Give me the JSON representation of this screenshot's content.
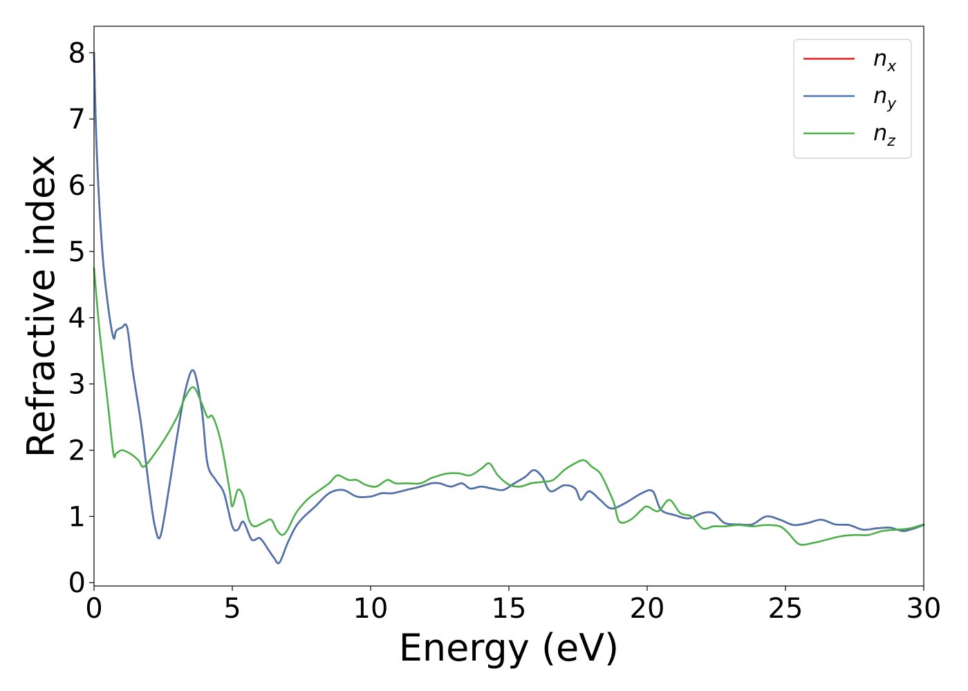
{
  "chart_data": {
    "type": "line",
    "xlabel": "Energy (eV)",
    "ylabel": "Refractive index",
    "xlim": [
      0,
      30
    ],
    "ylim": [
      -0.05,
      8.4
    ],
    "xticks": [
      0,
      5,
      10,
      15,
      20,
      25,
      30
    ],
    "yticks": [
      0,
      1,
      2,
      3,
      4,
      5,
      6,
      7,
      8
    ],
    "grid": false,
    "legend_position": "top-right",
    "series": [
      {
        "name": "n",
        "subscript": "x",
        "color": "#e41a1c",
        "x": [
          0,
          0.1,
          0.3,
          0.5,
          0.7,
          0.8,
          1.0,
          1.2,
          1.4,
          1.7,
          2.0,
          2.2,
          2.4,
          2.7,
          3.0,
          3.3,
          3.6,
          3.9,
          4.1,
          4.4,
          4.7,
          5.0,
          5.2,
          5.4,
          5.7,
          6.0,
          6.3,
          6.5,
          6.7,
          7.0,
          7.3,
          7.6,
          8.0,
          8.5,
          9.0,
          9.5,
          10.0,
          10.4,
          10.8,
          11.3,
          11.8,
          12.2,
          12.5,
          12.9,
          13.3,
          13.6,
          14.0,
          14.4,
          14.8,
          15.2,
          15.6,
          15.9,
          16.2,
          16.5,
          17.0,
          17.4,
          17.6,
          17.9,
          18.3,
          18.7,
          19.2,
          19.8,
          20.2,
          20.5,
          21.0,
          21.5,
          22.0,
          22.4,
          22.8,
          23.3,
          23.8,
          24.3,
          24.8,
          25.3,
          25.8,
          26.3,
          26.8,
          27.3,
          27.8,
          28.3,
          28.8,
          29.3,
          30.0
        ],
        "values": [
          8.0,
          6.5,
          5.0,
          4.2,
          3.7,
          3.8,
          3.85,
          3.85,
          3.2,
          2.4,
          1.4,
          0.85,
          0.7,
          1.4,
          2.2,
          2.9,
          3.2,
          2.6,
          1.8,
          1.55,
          1.35,
          0.85,
          0.8,
          0.92,
          0.65,
          0.67,
          0.5,
          0.38,
          0.3,
          0.6,
          0.85,
          1.0,
          1.15,
          1.35,
          1.4,
          1.3,
          1.3,
          1.35,
          1.35,
          1.4,
          1.45,
          1.5,
          1.5,
          1.45,
          1.5,
          1.42,
          1.45,
          1.42,
          1.4,
          1.5,
          1.6,
          1.7,
          1.6,
          1.38,
          1.47,
          1.42,
          1.25,
          1.38,
          1.25,
          1.12,
          1.2,
          1.35,
          1.38,
          1.1,
          1.02,
          0.97,
          1.05,
          1.05,
          0.9,
          0.88,
          0.88,
          1.0,
          0.95,
          0.87,
          0.9,
          0.95,
          0.88,
          0.87,
          0.8,
          0.82,
          0.83,
          0.78,
          0.87
        ]
      },
      {
        "name": "n",
        "subscript": "y",
        "color": "#4a74ad",
        "x": [
          0,
          0.1,
          0.3,
          0.5,
          0.7,
          0.8,
          1.0,
          1.2,
          1.4,
          1.7,
          2.0,
          2.2,
          2.4,
          2.7,
          3.0,
          3.3,
          3.6,
          3.9,
          4.1,
          4.4,
          4.7,
          5.0,
          5.2,
          5.4,
          5.7,
          6.0,
          6.3,
          6.5,
          6.7,
          7.0,
          7.3,
          7.6,
          8.0,
          8.5,
          9.0,
          9.5,
          10.0,
          10.4,
          10.8,
          11.3,
          11.8,
          12.2,
          12.5,
          12.9,
          13.3,
          13.6,
          14.0,
          14.4,
          14.8,
          15.2,
          15.6,
          15.9,
          16.2,
          16.5,
          17.0,
          17.4,
          17.6,
          17.9,
          18.3,
          18.7,
          19.2,
          19.8,
          20.2,
          20.5,
          21.0,
          21.5,
          22.0,
          22.4,
          22.8,
          23.3,
          23.8,
          24.3,
          24.8,
          25.3,
          25.8,
          26.3,
          26.8,
          27.3,
          27.8,
          28.3,
          28.8,
          29.3,
          30.0
        ],
        "values": [
          8.0,
          6.5,
          5.0,
          4.2,
          3.7,
          3.8,
          3.85,
          3.85,
          3.2,
          2.4,
          1.4,
          0.85,
          0.7,
          1.4,
          2.2,
          2.9,
          3.2,
          2.6,
          1.8,
          1.55,
          1.35,
          0.85,
          0.8,
          0.92,
          0.65,
          0.67,
          0.5,
          0.38,
          0.3,
          0.6,
          0.85,
          1.0,
          1.15,
          1.35,
          1.4,
          1.3,
          1.3,
          1.35,
          1.35,
          1.4,
          1.45,
          1.5,
          1.5,
          1.45,
          1.5,
          1.42,
          1.45,
          1.42,
          1.4,
          1.5,
          1.6,
          1.7,
          1.6,
          1.38,
          1.47,
          1.42,
          1.25,
          1.38,
          1.25,
          1.12,
          1.2,
          1.35,
          1.38,
          1.1,
          1.02,
          0.97,
          1.05,
          1.05,
          0.9,
          0.88,
          0.88,
          1.0,
          0.95,
          0.87,
          0.9,
          0.95,
          0.88,
          0.87,
          0.8,
          0.82,
          0.83,
          0.78,
          0.87
        ]
      },
      {
        "name": "n",
        "subscript": "z",
        "color": "#4daf4a",
        "x": [
          0,
          0.2,
          0.5,
          0.7,
          0.8,
          1.0,
          1.3,
          1.6,
          1.8,
          2.2,
          2.6,
          3.0,
          3.3,
          3.6,
          3.9,
          4.1,
          4.3,
          4.6,
          4.9,
          5.0,
          5.2,
          5.4,
          5.6,
          5.8,
          6.1,
          6.4,
          6.6,
          6.8,
          7.0,
          7.3,
          7.7,
          8.1,
          8.5,
          8.8,
          9.2,
          9.5,
          9.8,
          10.2,
          10.6,
          10.9,
          11.3,
          11.8,
          12.2,
          12.5,
          12.8,
          13.2,
          13.6,
          14.0,
          14.3,
          14.6,
          15.0,
          15.4,
          15.8,
          16.2,
          16.6,
          17.0,
          17.3,
          17.7,
          18.0,
          18.3,
          18.6,
          18.8,
          19.0,
          19.4,
          19.8,
          20.0,
          20.4,
          20.8,
          21.2,
          21.6,
          22.0,
          22.4,
          22.8,
          23.3,
          23.8,
          24.3,
          24.8,
          25.1,
          25.5,
          26.0,
          26.5,
          27.0,
          27.5,
          28.0,
          28.5,
          29.0,
          29.5,
          30.0
        ],
        "values": [
          4.75,
          3.8,
          2.7,
          1.95,
          1.95,
          2.0,
          1.95,
          1.85,
          1.75,
          1.95,
          2.2,
          2.5,
          2.8,
          2.95,
          2.7,
          2.5,
          2.5,
          2.1,
          1.4,
          1.15,
          1.4,
          1.3,
          0.95,
          0.85,
          0.9,
          0.95,
          0.8,
          0.72,
          0.8,
          1.05,
          1.25,
          1.38,
          1.5,
          1.62,
          1.55,
          1.55,
          1.48,
          1.45,
          1.55,
          1.5,
          1.5,
          1.5,
          1.58,
          1.62,
          1.65,
          1.65,
          1.62,
          1.72,
          1.8,
          1.62,
          1.48,
          1.45,
          1.5,
          1.52,
          1.55,
          1.7,
          1.78,
          1.85,
          1.75,
          1.65,
          1.4,
          1.2,
          0.92,
          0.95,
          1.1,
          1.15,
          1.08,
          1.25,
          1.05,
          1.0,
          0.82,
          0.85,
          0.85,
          0.87,
          0.85,
          0.87,
          0.85,
          0.75,
          0.58,
          0.6,
          0.65,
          0.7,
          0.72,
          0.72,
          0.78,
          0.8,
          0.82,
          0.88
        ]
      }
    ]
  }
}
